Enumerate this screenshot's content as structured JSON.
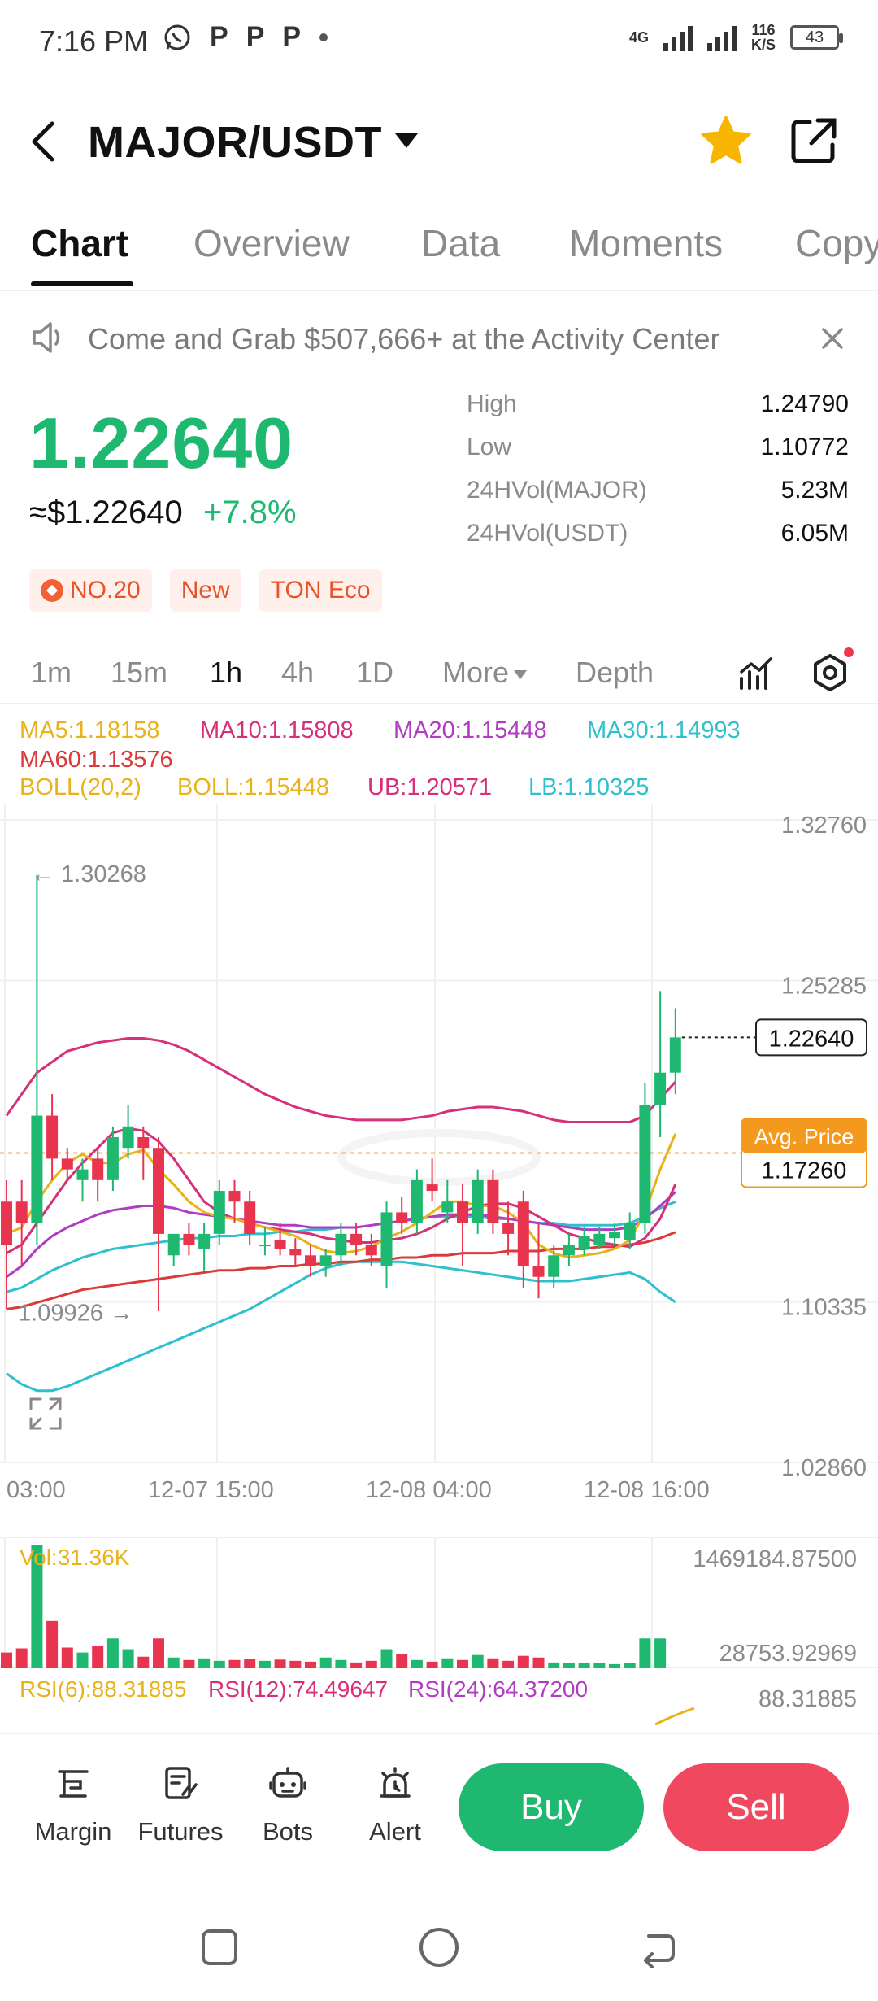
{
  "status_bar": {
    "time": "7:16 PM",
    "app_icons": [
      "P",
      "P",
      "P"
    ],
    "network_type": "4G",
    "speed_value": "116",
    "speed_unit": "K/S",
    "battery": "43"
  },
  "header": {
    "pair": "MAJOR/USDT"
  },
  "tabs": [
    "Chart",
    "Overview",
    "Data",
    "Moments",
    "Copy"
  ],
  "banner": {
    "text": "Come and Grab $507,666+ at the Activity Center"
  },
  "ticker": {
    "price": "1.22640",
    "usd_price": "≈$1.22640",
    "change": "+7.8%",
    "stats": [
      {
        "label": "High",
        "value": "1.24790"
      },
      {
        "label": "Low",
        "value": "1.10772"
      },
      {
        "label": "24HVol(MAJOR)",
        "value": "5.23M"
      },
      {
        "label": "24HVol(USDT)",
        "value": "6.05M"
      }
    ],
    "tags": [
      "NO.20",
      "New",
      "TON Eco"
    ]
  },
  "intervals": {
    "items": [
      "1m",
      "15m",
      "1h",
      "4h",
      "1D"
    ],
    "active": "1h",
    "more": "More",
    "depth": "Depth"
  },
  "indicators": {
    "ma5": "MA5:1.18158",
    "ma10": "MA10:1.15808",
    "ma20": "MA20:1.15448",
    "ma30": "MA30:1.14993",
    "ma60": "MA60:1.13576",
    "boll": "BOLL(20,2)",
    "boll_value": "BOLL:1.15448",
    "ub": "UB:1.20571",
    "lb": "LB:1.10325"
  },
  "colors": {
    "up": "#1eb870",
    "down": "#e8344e",
    "ma5": "#e8b21a",
    "ma10": "#d6307a",
    "ma20": "#b23bc4",
    "ma30": "#2fc0cf",
    "ma60": "#d93a3a",
    "avg_price": "#f39a1e"
  },
  "chart_data": {
    "type": "candlestick",
    "y_ticks": [
      "1.32760",
      "1.25285",
      "1.10335",
      "1.02860"
    ],
    "ylim": [
      1.0286,
      1.3276
    ],
    "x_ticks": [
      "03:00",
      "12-07 15:00",
      "12-08 04:00",
      "12-08 16:00"
    ],
    "max_label": "← 1.30268",
    "min_label": "1.09926 →",
    "current_price_label": "1.22640",
    "avg_price_title": "Avg. Price",
    "avg_price_value": "1.17260",
    "avg_price": 1.1726,
    "candles": [
      {
        "o": 1.15,
        "h": 1.16,
        "l": 1.1,
        "c": 1.13
      },
      {
        "o": 1.15,
        "h": 1.16,
        "l": 1.12,
        "c": 1.14
      },
      {
        "o": 1.14,
        "h": 1.302,
        "l": 1.13,
        "c": 1.19
      },
      {
        "o": 1.19,
        "h": 1.2,
        "l": 1.16,
        "c": 1.17
      },
      {
        "o": 1.17,
        "h": 1.175,
        "l": 1.16,
        "c": 1.165
      },
      {
        "o": 1.16,
        "h": 1.17,
        "l": 1.15,
        "c": 1.165
      },
      {
        "o": 1.17,
        "h": 1.175,
        "l": 1.15,
        "c": 1.16
      },
      {
        "o": 1.16,
        "h": 1.185,
        "l": 1.155,
        "c": 1.18
      },
      {
        "o": 1.175,
        "h": 1.195,
        "l": 1.17,
        "c": 1.185
      },
      {
        "o": 1.18,
        "h": 1.185,
        "l": 1.16,
        "c": 1.175
      },
      {
        "o": 1.175,
        "h": 1.18,
        "l": 1.099,
        "c": 1.135
      },
      {
        "o": 1.125,
        "h": 1.135,
        "l": 1.12,
        "c": 1.135
      },
      {
        "o": 1.135,
        "h": 1.14,
        "l": 1.125,
        "c": 1.13
      },
      {
        "o": 1.128,
        "h": 1.14,
        "l": 1.118,
        "c": 1.135
      },
      {
        "o": 1.135,
        "h": 1.16,
        "l": 1.13,
        "c": 1.155
      },
      {
        "o": 1.155,
        "h": 1.16,
        "l": 1.14,
        "c": 1.15
      },
      {
        "o": 1.15,
        "h": 1.155,
        "l": 1.13,
        "c": 1.135
      },
      {
        "o": 1.13,
        "h": 1.138,
        "l": 1.125,
        "c": 1.13
      },
      {
        "o": 1.132,
        "h": 1.14,
        "l": 1.125,
        "c": 1.128
      },
      {
        "o": 1.128,
        "h": 1.133,
        "l": 1.12,
        "c": 1.125
      },
      {
        "o": 1.125,
        "h": 1.13,
        "l": 1.115,
        "c": 1.12
      },
      {
        "o": 1.12,
        "h": 1.128,
        "l": 1.115,
        "c": 1.125
      },
      {
        "o": 1.125,
        "h": 1.14,
        "l": 1.12,
        "c": 1.135
      },
      {
        "o": 1.135,
        "h": 1.14,
        "l": 1.125,
        "c": 1.13
      },
      {
        "o": 1.13,
        "h": 1.135,
        "l": 1.12,
        "c": 1.125
      },
      {
        "o": 1.12,
        "h": 1.15,
        "l": 1.11,
        "c": 1.145
      },
      {
        "o": 1.145,
        "h": 1.152,
        "l": 1.135,
        "c": 1.14
      },
      {
        "o": 1.14,
        "h": 1.165,
        "l": 1.135,
        "c": 1.16
      },
      {
        "o": 1.158,
        "h": 1.17,
        "l": 1.15,
        "c": 1.155
      },
      {
        "o": 1.145,
        "h": 1.16,
        "l": 1.14,
        "c": 1.15
      },
      {
        "o": 1.15,
        "h": 1.158,
        "l": 1.12,
        "c": 1.14
      },
      {
        "o": 1.14,
        "h": 1.165,
        "l": 1.135,
        "c": 1.16
      },
      {
        "o": 1.16,
        "h": 1.165,
        "l": 1.135,
        "c": 1.14
      },
      {
        "o": 1.14,
        "h": 1.15,
        "l": 1.125,
        "c": 1.135
      },
      {
        "o": 1.15,
        "h": 1.155,
        "l": 1.11,
        "c": 1.12
      },
      {
        "o": 1.12,
        "h": 1.14,
        "l": 1.105,
        "c": 1.115
      },
      {
        "o": 1.115,
        "h": 1.13,
        "l": 1.11,
        "c": 1.125
      },
      {
        "o": 1.125,
        "h": 1.135,
        "l": 1.12,
        "c": 1.13
      },
      {
        "o": 1.128,
        "h": 1.138,
        "l": 1.125,
        "c": 1.134
      },
      {
        "o": 1.13,
        "h": 1.138,
        "l": 1.128,
        "c": 1.135
      },
      {
        "o": 1.133,
        "h": 1.14,
        "l": 1.13,
        "c": 1.136
      },
      {
        "o": 1.132,
        "h": 1.145,
        "l": 1.128,
        "c": 1.14
      },
      {
        "o": 1.14,
        "h": 1.205,
        "l": 1.135,
        "c": 1.195
      },
      {
        "o": 1.195,
        "h": 1.248,
        "l": 1.18,
        "c": 1.21
      },
      {
        "o": 1.21,
        "h": 1.24,
        "l": 1.2,
        "c": 1.2264
      }
    ],
    "ma5": [
      1.135,
      1.138,
      1.15,
      1.16,
      1.168,
      1.172,
      1.168,
      1.168,
      1.172,
      1.174,
      1.165,
      1.158,
      1.15,
      1.145,
      1.143,
      1.142,
      1.14,
      1.138,
      1.136,
      1.134,
      1.13,
      1.127,
      1.126,
      1.127,
      1.129,
      1.133,
      1.136,
      1.14,
      1.145,
      1.15,
      1.15,
      1.148,
      1.148,
      1.145,
      1.14,
      1.13,
      1.126,
      1.124,
      1.125,
      1.126,
      1.128,
      1.132,
      1.145,
      1.165,
      1.18158
    ],
    "ma10": [
      1.126,
      1.13,
      1.14,
      1.15,
      1.16,
      1.168,
      1.175,
      1.182,
      1.184,
      1.183,
      1.178,
      1.17,
      1.16,
      1.15,
      1.145,
      1.142,
      1.14,
      1.138,
      1.137,
      1.136,
      1.135,
      1.133,
      1.132,
      1.131,
      1.131,
      1.132,
      1.133,
      1.135,
      1.138,
      1.142,
      1.145,
      1.148,
      1.149,
      1.149,
      1.147,
      1.143,
      1.139,
      1.135,
      1.133,
      1.131,
      1.13,
      1.129,
      1.133,
      1.142,
      1.15808
    ],
    "ma20": [
      1.115,
      1.12,
      1.128,
      1.134,
      1.138,
      1.141,
      1.144,
      1.146,
      1.147,
      1.148,
      1.148,
      1.147,
      1.145,
      1.144,
      1.143,
      1.142,
      1.141,
      1.14,
      1.139,
      1.139,
      1.138,
      1.138,
      1.138,
      1.138,
      1.139,
      1.14,
      1.141,
      1.142,
      1.143,
      1.144,
      1.144,
      1.144,
      1.143,
      1.142,
      1.141,
      1.14,
      1.139,
      1.138,
      1.137,
      1.137,
      1.137,
      1.138,
      1.142,
      1.148,
      1.15448
    ],
    "ma30": [
      1.108,
      1.11,
      1.114,
      1.118,
      1.121,
      1.124,
      1.126,
      1.128,
      1.129,
      1.13,
      1.131,
      1.132,
      1.133,
      1.133,
      1.134,
      1.134,
      1.135,
      1.135,
      1.136,
      1.136,
      1.137,
      1.137,
      1.138,
      1.138,
      1.139,
      1.14,
      1.141,
      1.142,
      1.143,
      1.143,
      1.143,
      1.143,
      1.142,
      1.142,
      1.141,
      1.14,
      1.14,
      1.139,
      1.139,
      1.139,
      1.139,
      1.14,
      1.143,
      1.147,
      1.14993
    ],
    "ma60": [
      1.1,
      1.101,
      1.103,
      1.105,
      1.107,
      1.109,
      1.11,
      1.111,
      1.112,
      1.113,
      1.114,
      1.115,
      1.116,
      1.117,
      1.118,
      1.118,
      1.119,
      1.119,
      1.12,
      1.12,
      1.121,
      1.121,
      1.122,
      1.122,
      1.123,
      1.123,
      1.124,
      1.124,
      1.125,
      1.125,
      1.126,
      1.126,
      1.126,
      1.127,
      1.127,
      1.127,
      1.128,
      1.128,
      1.128,
      1.129,
      1.129,
      1.13,
      1.131,
      1.133,
      1.13576
    ],
    "boll_ub": [
      1.19,
      1.2,
      1.21,
      1.215,
      1.22,
      1.222,
      1.224,
      1.225,
      1.226,
      1.226,
      1.225,
      1.223,
      1.22,
      1.216,
      1.212,
      1.208,
      1.204,
      1.2,
      1.197,
      1.194,
      1.192,
      1.19,
      1.189,
      1.188,
      1.188,
      1.188,
      1.188,
      1.189,
      1.19,
      1.192,
      1.193,
      1.194,
      1.194,
      1.193,
      1.192,
      1.19,
      1.188,
      1.187,
      1.187,
      1.187,
      1.187,
      1.187,
      1.19,
      1.198,
      1.20571
    ],
    "boll_lb": [
      1.07,
      1.065,
      1.062,
      1.062,
      1.064,
      1.067,
      1.07,
      1.073,
      1.076,
      1.079,
      1.082,
      1.085,
      1.088,
      1.091,
      1.094,
      1.097,
      1.1,
      1.104,
      1.108,
      1.112,
      1.116,
      1.119,
      1.121,
      1.122,
      1.122,
      1.122,
      1.122,
      1.121,
      1.12,
      1.119,
      1.118,
      1.117,
      1.116,
      1.115,
      1.114,
      1.113,
      1.113,
      1.113,
      1.114,
      1.115,
      1.116,
      1.117,
      1.114,
      1.108,
      1.10325
    ]
  },
  "volume": {
    "label": "Vol:31.36K",
    "max_label": "1469184.87500",
    "min_label": "28753.92969",
    "max": 1469184.875,
    "bars": [
      180000,
      230000,
      1469184,
      560000,
      240000,
      180000,
      260000,
      350000,
      220000,
      130000,
      350000,
      120000,
      90000,
      110000,
      80000,
      90000,
      100000,
      80000,
      95000,
      80000,
      70000,
      120000,
      90000,
      60000,
      80000,
      220000,
      160000,
      90000,
      70000,
      110000,
      90000,
      150000,
      110000,
      80000,
      140000,
      120000,
      60000,
      50000,
      50000,
      50000,
      40000,
      50000,
      350000,
      350000,
      0
    ]
  },
  "rsi": {
    "rsi6": "RSI(6):88.31885",
    "rsi12": "RSI(12):74.49647",
    "rsi24": "RSI(24):64.37200",
    "value_label": "88.31885"
  },
  "bottom_nav": {
    "items": [
      "Margin",
      "Futures",
      "Bots",
      "Alert"
    ],
    "buy": "Buy",
    "sell": "Sell"
  }
}
